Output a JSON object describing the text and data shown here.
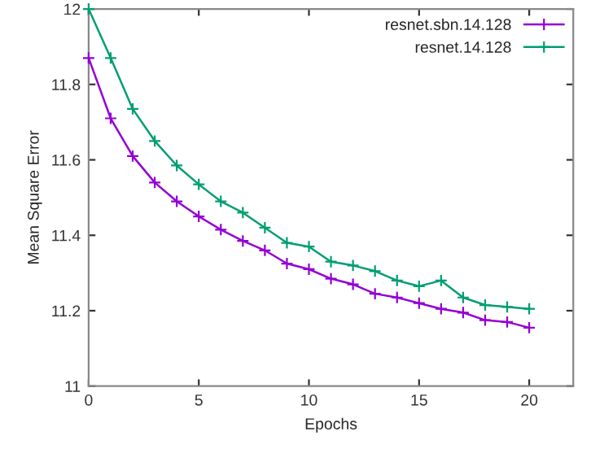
{
  "chart_data": {
    "type": "line",
    "xlabel": "Epochs",
    "ylabel": "Mean Square Error",
    "x": [
      0,
      1,
      2,
      3,
      4,
      5,
      6,
      7,
      8,
      9,
      10,
      11,
      12,
      13,
      14,
      15,
      16,
      17,
      18,
      19,
      20
    ],
    "series": [
      {
        "name": "resnet.sbn.14.128",
        "color": "#9400d3",
        "values": [
          11.87,
          11.71,
          11.61,
          11.54,
          11.49,
          11.45,
          11.415,
          11.385,
          11.36,
          11.325,
          11.31,
          11.285,
          11.27,
          11.245,
          11.235,
          11.22,
          11.205,
          11.195,
          11.175,
          11.17,
          11.155
        ]
      },
      {
        "name": "resnet.14.128",
        "color": "#009e73",
        "values": [
          12.0,
          11.87,
          11.735,
          11.65,
          11.585,
          11.535,
          11.49,
          11.46,
          11.42,
          11.38,
          11.37,
          11.33,
          11.32,
          11.305,
          11.28,
          11.265,
          11.28,
          11.235,
          11.215,
          11.21,
          11.205
        ]
      }
    ],
    "xlim": [
      0,
      22
    ],
    "ylim": [
      11,
      12
    ],
    "xticks": [
      0,
      5,
      10,
      15,
      20
    ],
    "yticks": [
      11,
      11.2,
      11.4,
      11.6,
      11.8,
      12
    ],
    "grid": false,
    "legend": "top right",
    "marker": "cross",
    "line_style": "solid"
  }
}
